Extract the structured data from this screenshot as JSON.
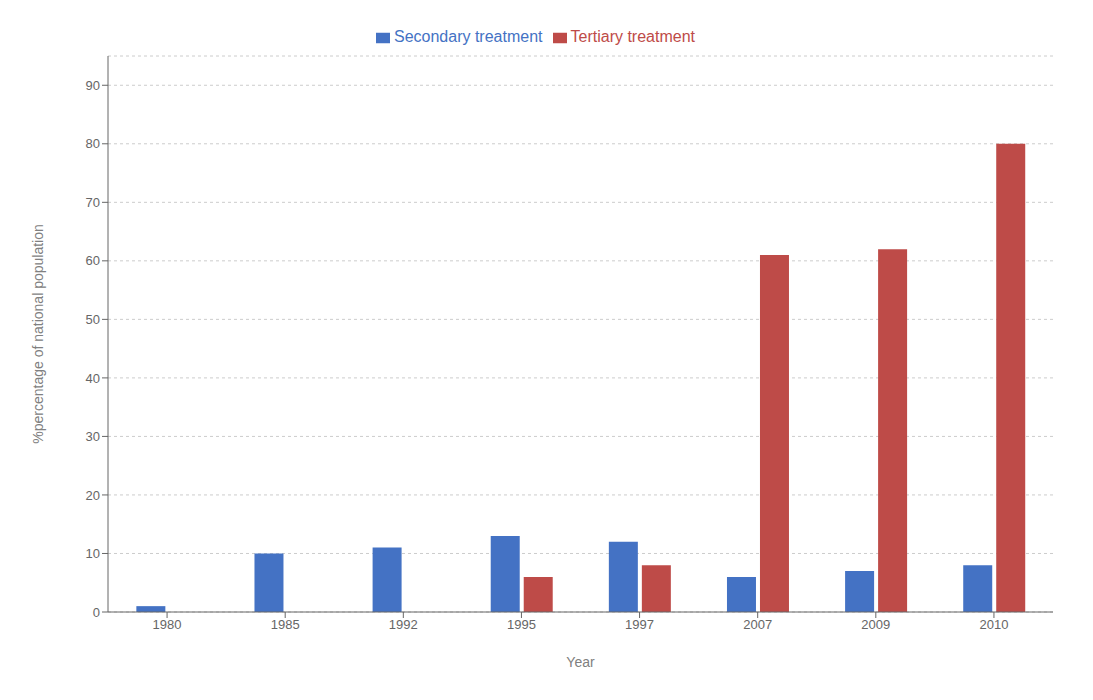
{
  "chart_data": {
    "type": "bar",
    "categories": [
      "1980",
      "1985",
      "1992",
      "1995",
      "1997",
      "2007",
      "2009",
      "2010"
    ],
    "series": [
      {
        "name": "Secondary treatment",
        "color": "#4472C4",
        "values": [
          1,
          10,
          11,
          13,
          12,
          6,
          7,
          8
        ]
      },
      {
        "name": "Tertiary treatment",
        "color": "#BE4B48",
        "values": [
          0,
          0,
          0,
          6,
          8,
          61,
          62,
          80
        ]
      }
    ],
    "xlabel": "Year",
    "ylabel": "%percentage of national population",
    "ylim": [
      0,
      95
    ],
    "yticks": [
      0,
      10,
      20,
      30,
      40,
      50,
      60,
      70,
      80,
      90
    ],
    "grid": true,
    "legend": "top"
  }
}
